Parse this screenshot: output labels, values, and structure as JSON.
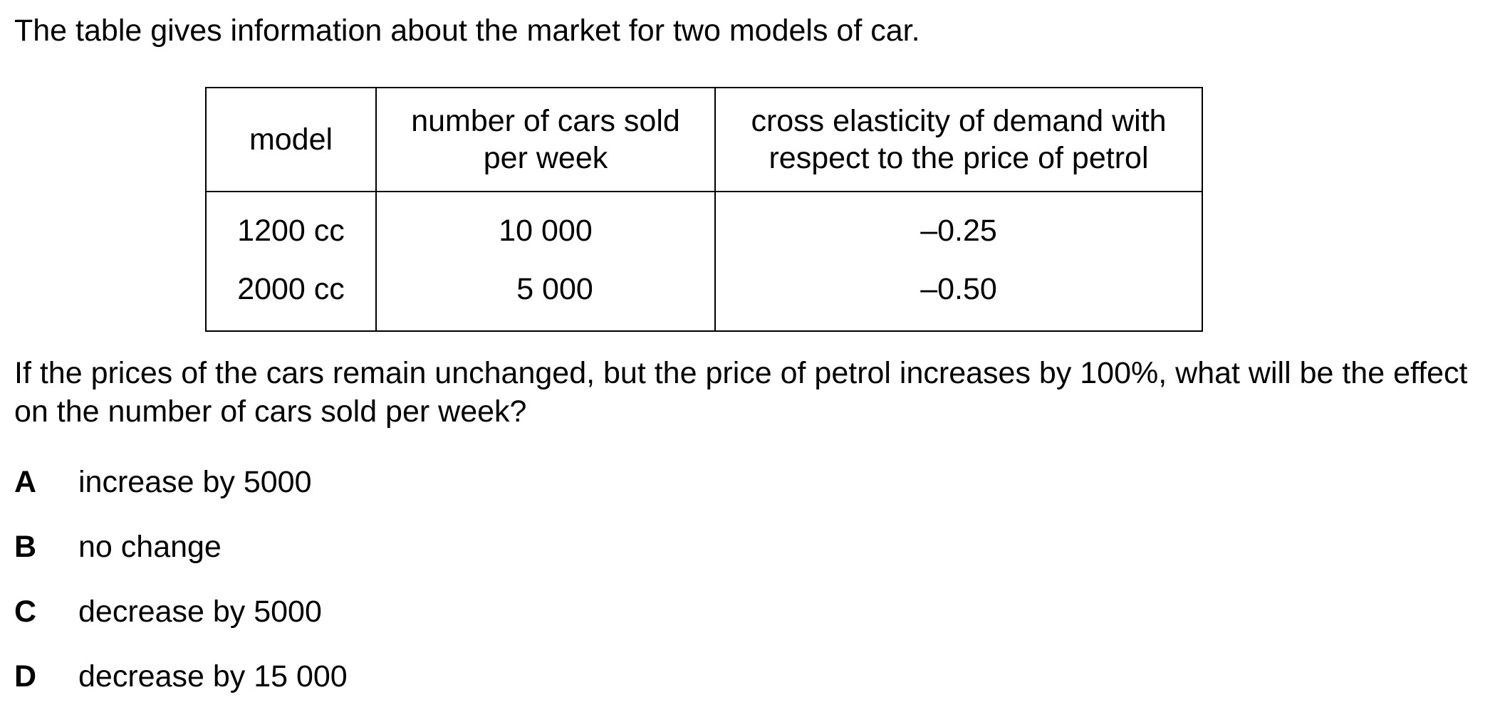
{
  "intro": "The table gives information about the market for two models of car.",
  "table": {
    "headers": {
      "model": "model",
      "sold_line1": "number of cars sold",
      "sold_line2": "per week",
      "cross_line1": "cross elasticity of demand with",
      "cross_line2": "respect to the price of petrol"
    },
    "rows": [
      {
        "model": "1200 cc",
        "sold": "10 000",
        "cross": "–0.25"
      },
      {
        "model": "2000 cc",
        "sold": "5 000",
        "cross": "–0.50"
      }
    ]
  },
  "question": "If the prices of the cars remain unchanged, but the price of petrol increases by 100%, what will be the effect on the number of cars sold per week?",
  "options": [
    {
      "letter": "A",
      "text": "increase by 5000"
    },
    {
      "letter": "B",
      "text": "no change"
    },
    {
      "letter": "C",
      "text": "decrease by 5000"
    },
    {
      "letter": "D",
      "text": "decrease by 15 000"
    }
  ]
}
